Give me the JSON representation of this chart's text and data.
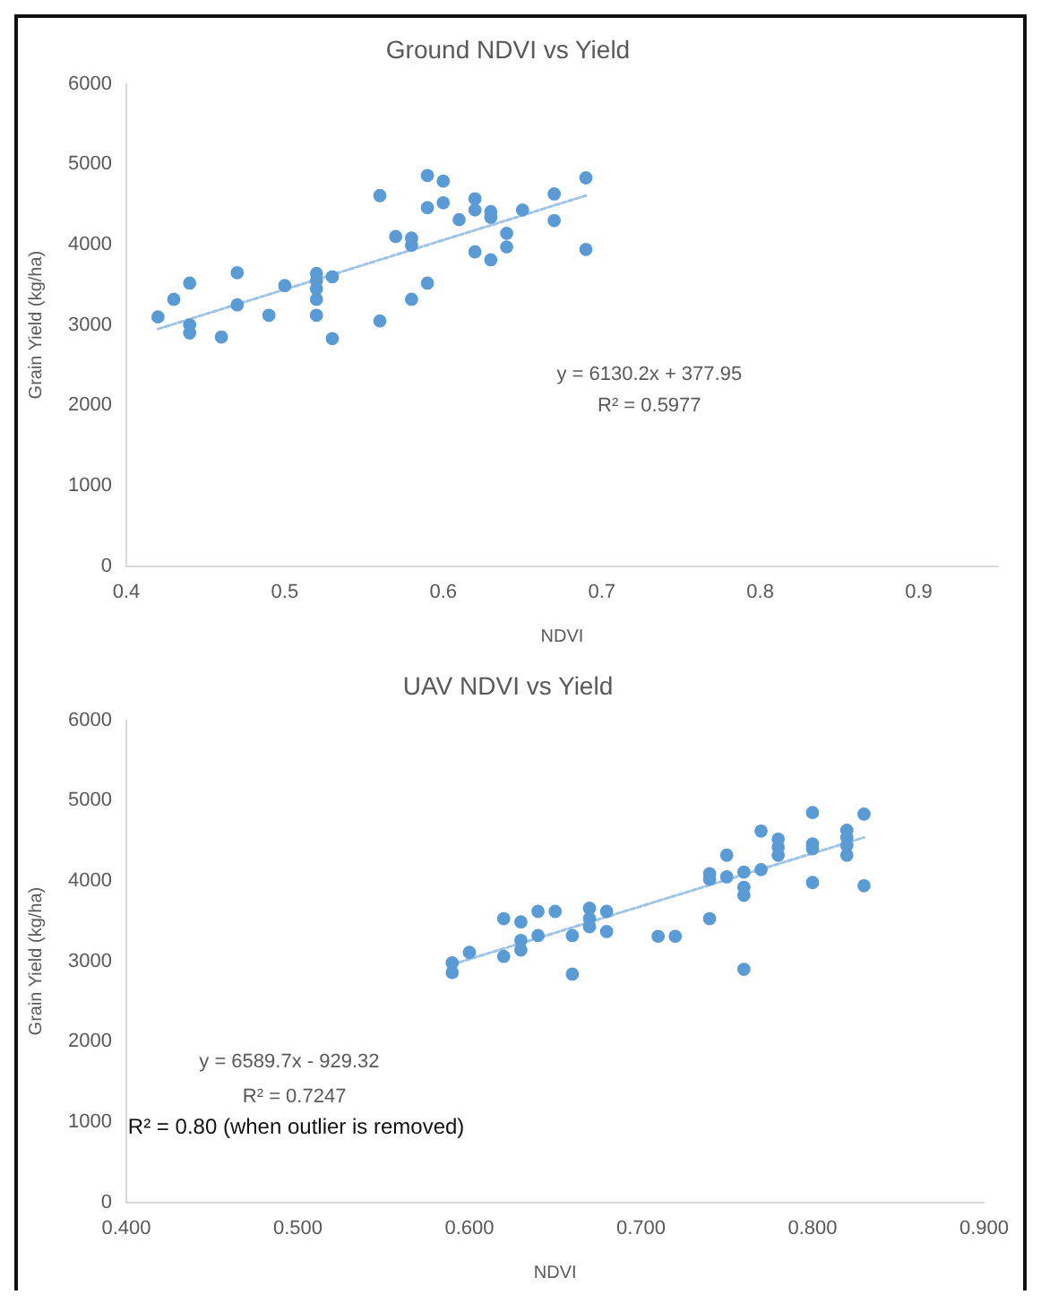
{
  "chart_data": [
    {
      "type": "scatter",
      "title": "Ground NDVI vs Yield",
      "xlabel": "NDVI",
      "ylabel": "Grain Yield (kg/ha)",
      "xlim": [
        0.4,
        0.95
      ],
      "xticks": [
        0.4,
        0.5,
        0.6,
        0.7,
        0.8,
        0.9
      ],
      "ylim": [
        0,
        6000
      ],
      "yticks": [
        0,
        1000,
        2000,
        3000,
        4000,
        5000,
        6000
      ],
      "marker": "circle",
      "series": [
        {
          "type": "scatter",
          "color": "#5b9bd5",
          "x": [
            0.42,
            0.43,
            0.44,
            0.44,
            0.44,
            0.46,
            0.47,
            0.47,
            0.49,
            0.5,
            0.52,
            0.52,
            0.52,
            0.52,
            0.52,
            0.53,
            0.53,
            0.56,
            0.56,
            0.57,
            0.58,
            0.58,
            0.58,
            0.59,
            0.59,
            0.6,
            0.59,
            0.6,
            0.61,
            0.62,
            0.62,
            0.62,
            0.63,
            0.63,
            0.63,
            0.64,
            0.64,
            0.65,
            0.67,
            0.67,
            0.69,
            0.69
          ],
          "values": [
            3100,
            3320,
            3520,
            3000,
            2900,
            2850,
            3650,
            3250,
            3120,
            3490,
            3640,
            3550,
            3450,
            3320,
            3120,
            3600,
            2830,
            3050,
            4610,
            4100,
            4080,
            3990,
            3320,
            3520,
            4860,
            4790,
            4460,
            4520,
            4310,
            4570,
            4430,
            3910,
            4410,
            4340,
            3810,
            4140,
            3970,
            4430,
            4630,
            4300,
            4830,
            3940
          ]
        },
        {
          "type": "line",
          "color": "#9dc3e6",
          "line_style": "dotted",
          "marker": "none",
          "x": [
            0.42,
            0.69
          ],
          "values": [
            2950,
            4610
          ]
        }
      ],
      "annotations": [
        "y = 6130.2x + 377.95",
        "R² = 0.5977"
      ]
    },
    {
      "type": "scatter",
      "title": "UAV NDVI vs Yield",
      "xlabel": "NDVI",
      "ylabel": "Grain Yield (kg/ha)",
      "xlim": [
        0.4,
        0.9
      ],
      "xticks": [
        {
          "value": 0.4,
          "label": "0.400"
        },
        {
          "value": 0.5,
          "label": "0.500"
        },
        {
          "value": 0.6,
          "label": "0.600"
        },
        {
          "value": 0.7,
          "label": "0.700"
        },
        {
          "value": 0.8,
          "label": "0.800"
        },
        {
          "value": 0.9,
          "label": "0.900"
        }
      ],
      "ylim": [
        0,
        6000
      ],
      "yticks": [
        0,
        1000,
        2000,
        3000,
        4000,
        5000,
        6000
      ],
      "marker": "circle",
      "series": [
        {
          "type": "scatter",
          "color": "#5b9bd5",
          "x": [
            0.59,
            0.59,
            0.6,
            0.62,
            0.62,
            0.63,
            0.63,
            0.63,
            0.64,
            0.64,
            0.65,
            0.66,
            0.66,
            0.67,
            0.67,
            0.67,
            0.68,
            0.68,
            0.71,
            0.72,
            0.74,
            0.74,
            0.74,
            0.75,
            0.75,
            0.76,
            0.76,
            0.76,
            0.76,
            0.77,
            0.77,
            0.78,
            0.78,
            0.78,
            0.8,
            0.8,
            0.8,
            0.8,
            0.82,
            0.82,
            0.82,
            0.82,
            0.83,
            0.83
          ],
          "values": [
            2980,
            2860,
            3110,
            3530,
            3060,
            3490,
            3260,
            3140,
            3620,
            3320,
            3620,
            3320,
            2840,
            3660,
            3530,
            3430,
            3620,
            3370,
            3310,
            3310,
            3530,
            4090,
            4020,
            4320,
            4050,
            4110,
            3920,
            3820,
            2900,
            4620,
            4140,
            4520,
            4420,
            4320,
            4850,
            4460,
            4400,
            3980,
            4630,
            4540,
            4440,
            4320,
            4830,
            3940
          ]
        },
        {
          "type": "line",
          "color": "#9dc3e6",
          "line_style": "dotted",
          "marker": "none",
          "x": [
            0.59,
            0.83
          ],
          "values": [
            2960,
            4540
          ]
        }
      ],
      "annotations": [
        "y = 6589.7x - 929.32",
        "R² = 0.7247",
        "R² = 0.80 (when outlier is removed)"
      ]
    }
  ]
}
